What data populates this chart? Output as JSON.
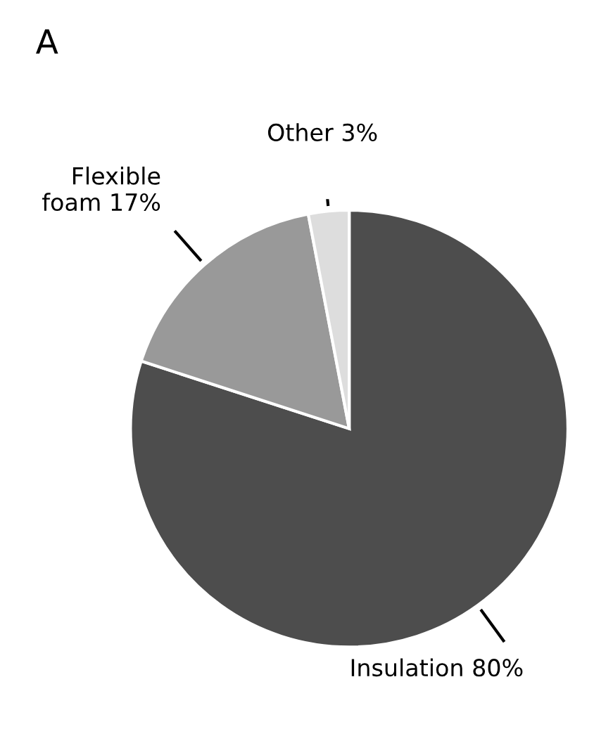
{
  "chart_data": {
    "type": "pie",
    "title": "A",
    "categories": [
      "Insulation",
      "Flexible\nfoam",
      "Other"
    ],
    "values": [
      80,
      17,
      3
    ],
    "value_labels": [
      "80%",
      "17%",
      "3%"
    ],
    "colors": [
      "#4d4d4d",
      "#999999",
      "#dddddd"
    ],
    "legend": false
  }
}
